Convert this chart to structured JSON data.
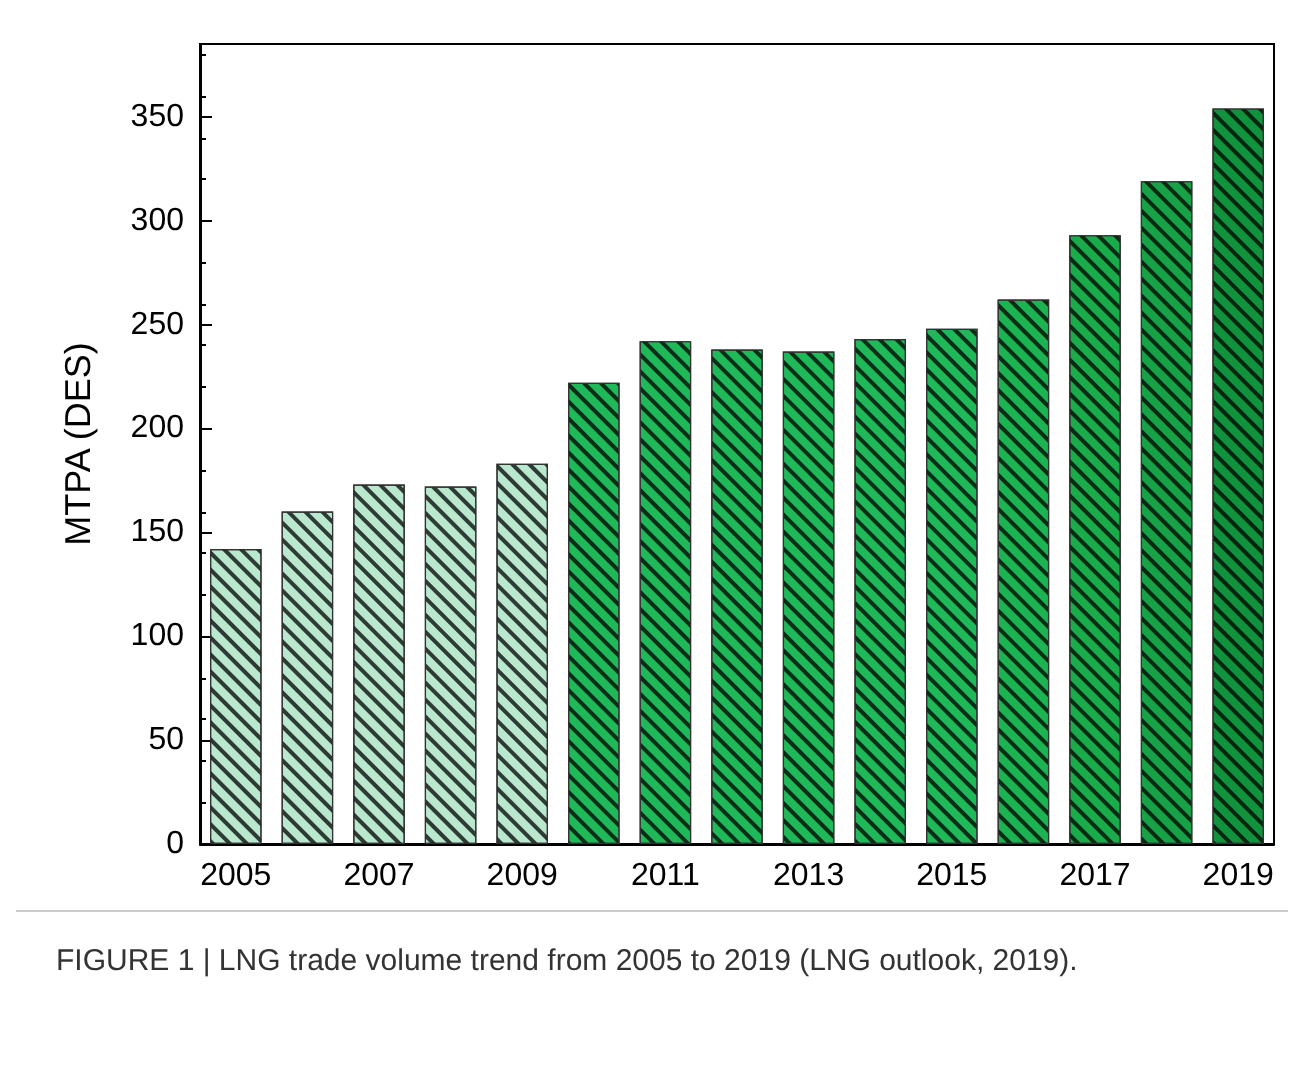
{
  "chart_data": {
    "type": "bar",
    "ylabel": "MTPA (DES)",
    "categories": [
      "2005",
      null,
      "2007",
      null,
      "2009",
      null,
      "2011",
      null,
      "2013",
      null,
      "2015",
      null,
      "2017",
      null,
      "2019"
    ],
    "values": [
      142,
      160,
      173,
      172,
      183,
      222,
      242,
      238,
      237,
      243,
      248,
      262,
      293,
      319,
      354
    ],
    "colors": [
      "#b9e8cf",
      "#b9e8cf",
      "#b9e8cf",
      "#b9e8cf",
      "#b9e8cf",
      "#20b95a",
      "#20b95a",
      "#20b95a",
      "#20b95a",
      "#20b95a",
      "#20b95a",
      "#1cb452",
      "#1aab4b",
      "#17a247",
      "#11923c"
    ],
    "ylim": [
      0,
      385
    ],
    "yticks": [
      0,
      50,
      100,
      150,
      200,
      250,
      300,
      350
    ],
    "grid": false,
    "annotations": [
      "FIGURE 1 | LNG trade volume trend from 2005 to 2019 (LNG outlook, 2019)."
    ]
  }
}
